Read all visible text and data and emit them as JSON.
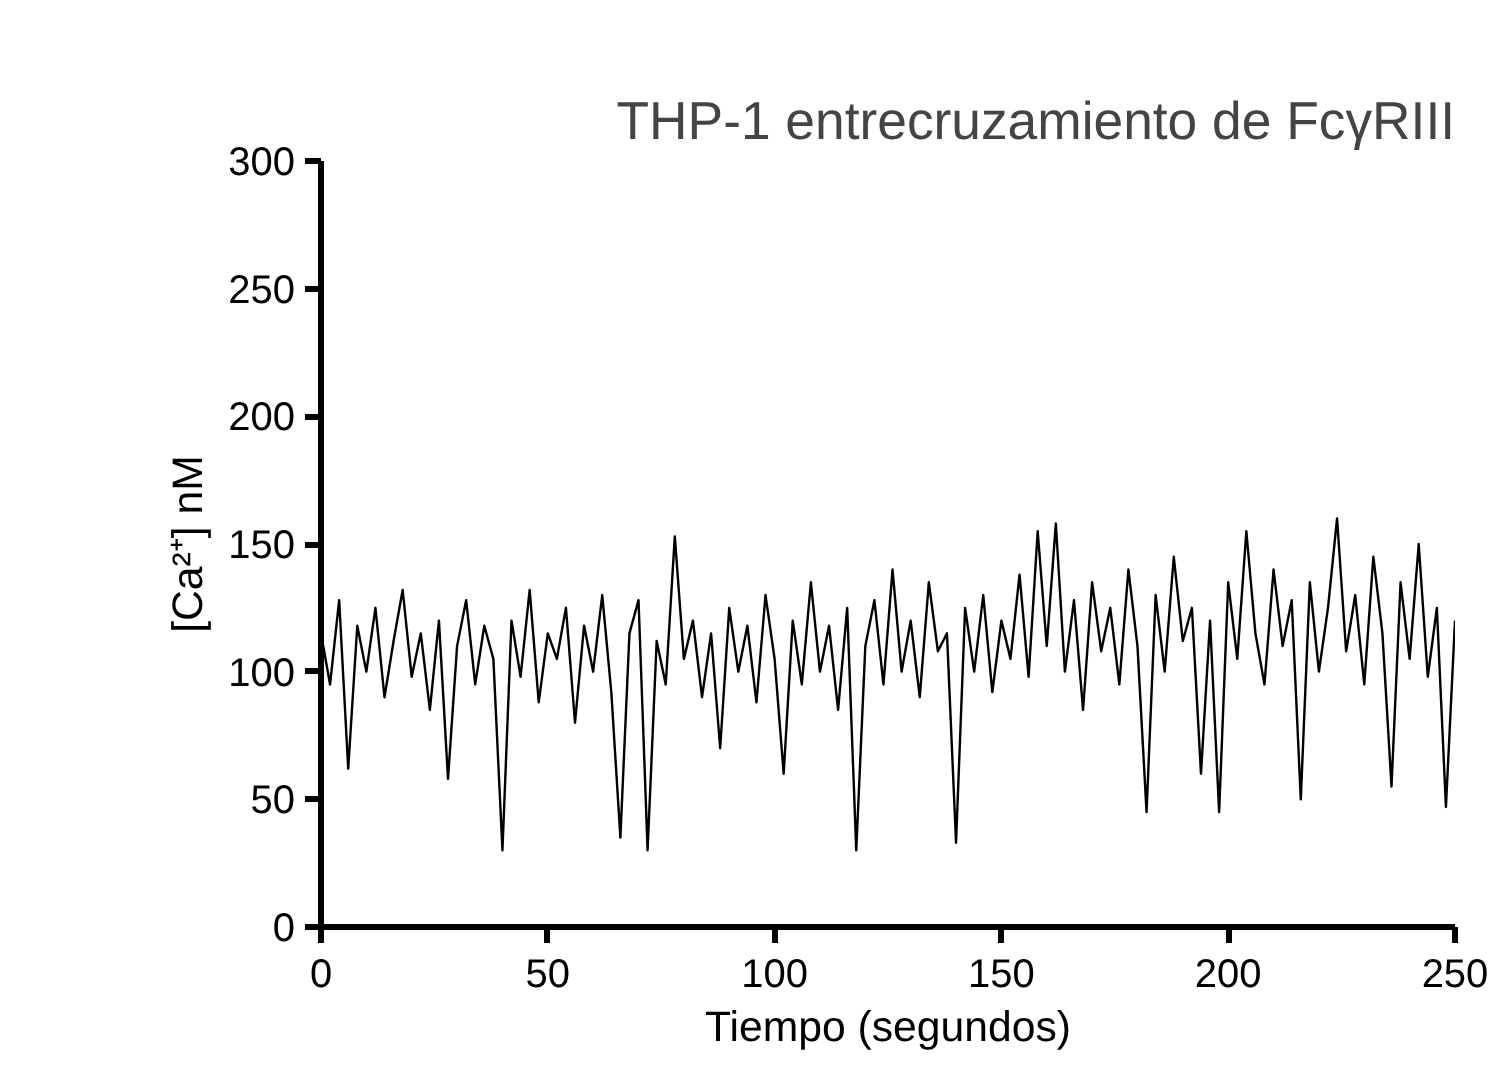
{
  "chart_data": {
    "type": "line",
    "title": "THP-1 entrecruzamiento de FcγRIII",
    "xlabel": "Tiempo (segundos)",
    "ylabel": "[Ca²⁺] nM",
    "x": [
      0,
      2,
      4,
      6,
      8,
      10,
      12,
      14,
      16,
      18,
      20,
      22,
      24,
      26,
      28,
      30,
      32,
      34,
      36,
      38,
      40,
      42,
      44,
      46,
      48,
      50,
      52,
      54,
      56,
      58,
      60,
      62,
      64,
      66,
      68,
      70,
      72,
      74,
      76,
      78,
      80,
      82,
      84,
      86,
      88,
      90,
      92,
      94,
      96,
      98,
      100,
      102,
      104,
      106,
      108,
      110,
      112,
      114,
      116,
      118,
      120,
      122,
      124,
      126,
      128,
      130,
      132,
      134,
      136,
      138,
      140,
      142,
      144,
      146,
      148,
      150,
      152,
      154,
      156,
      158,
      160,
      162,
      164,
      166,
      168,
      170,
      172,
      174,
      176,
      178,
      180,
      182,
      184,
      186,
      188,
      190,
      192,
      194,
      196,
      198,
      200,
      202,
      204,
      206,
      208,
      210,
      212,
      214,
      216,
      218,
      220,
      222,
      224,
      226,
      228,
      230,
      232,
      234,
      236,
      238,
      240,
      242,
      244,
      246,
      248,
      250
    ],
    "series": [
      {
        "color": "#000000",
        "values": [
          115,
          95,
          128,
          62,
          118,
          100,
          125,
          90,
          112,
          132,
          98,
          115,
          85,
          120,
          58,
          110,
          128,
          95,
          118,
          105,
          30,
          120,
          98,
          132,
          88,
          115,
          105,
          125,
          80,
          118,
          100,
          130,
          92,
          35,
          115,
          128,
          30,
          112,
          95,
          153,
          105,
          120,
          90,
          115,
          70,
          125,
          100,
          118,
          88,
          130,
          105,
          60,
          120,
          95,
          135,
          100,
          118,
          85,
          125,
          30,
          110,
          128,
          95,
          140,
          100,
          120,
          90,
          135,
          108,
          115,
          33,
          125,
          100,
          130,
          92,
          120,
          105,
          138,
          98,
          155,
          110,
          158,
          100,
          128,
          85,
          135,
          108,
          125,
          95,
          140,
          110,
          45,
          130,
          100,
          145,
          112,
          125,
          60,
          120,
          45,
          135,
          105,
          155,
          115,
          95,
          140,
          110,
          128,
          50,
          135,
          100,
          125,
          160,
          108,
          130,
          95,
          145,
          115,
          55,
          135,
          105,
          150,
          98,
          125,
          47,
          120
        ]
      }
    ],
    "xlim": [
      0,
      250
    ],
    "ylim": [
      0,
      300
    ],
    "xticks": [
      0,
      50,
      100,
      150,
      200,
      250
    ],
    "yticks": [
      0,
      50,
      100,
      150,
      200,
      250,
      300
    ],
    "grid": false,
    "line_style": "solid",
    "marker": "none"
  }
}
